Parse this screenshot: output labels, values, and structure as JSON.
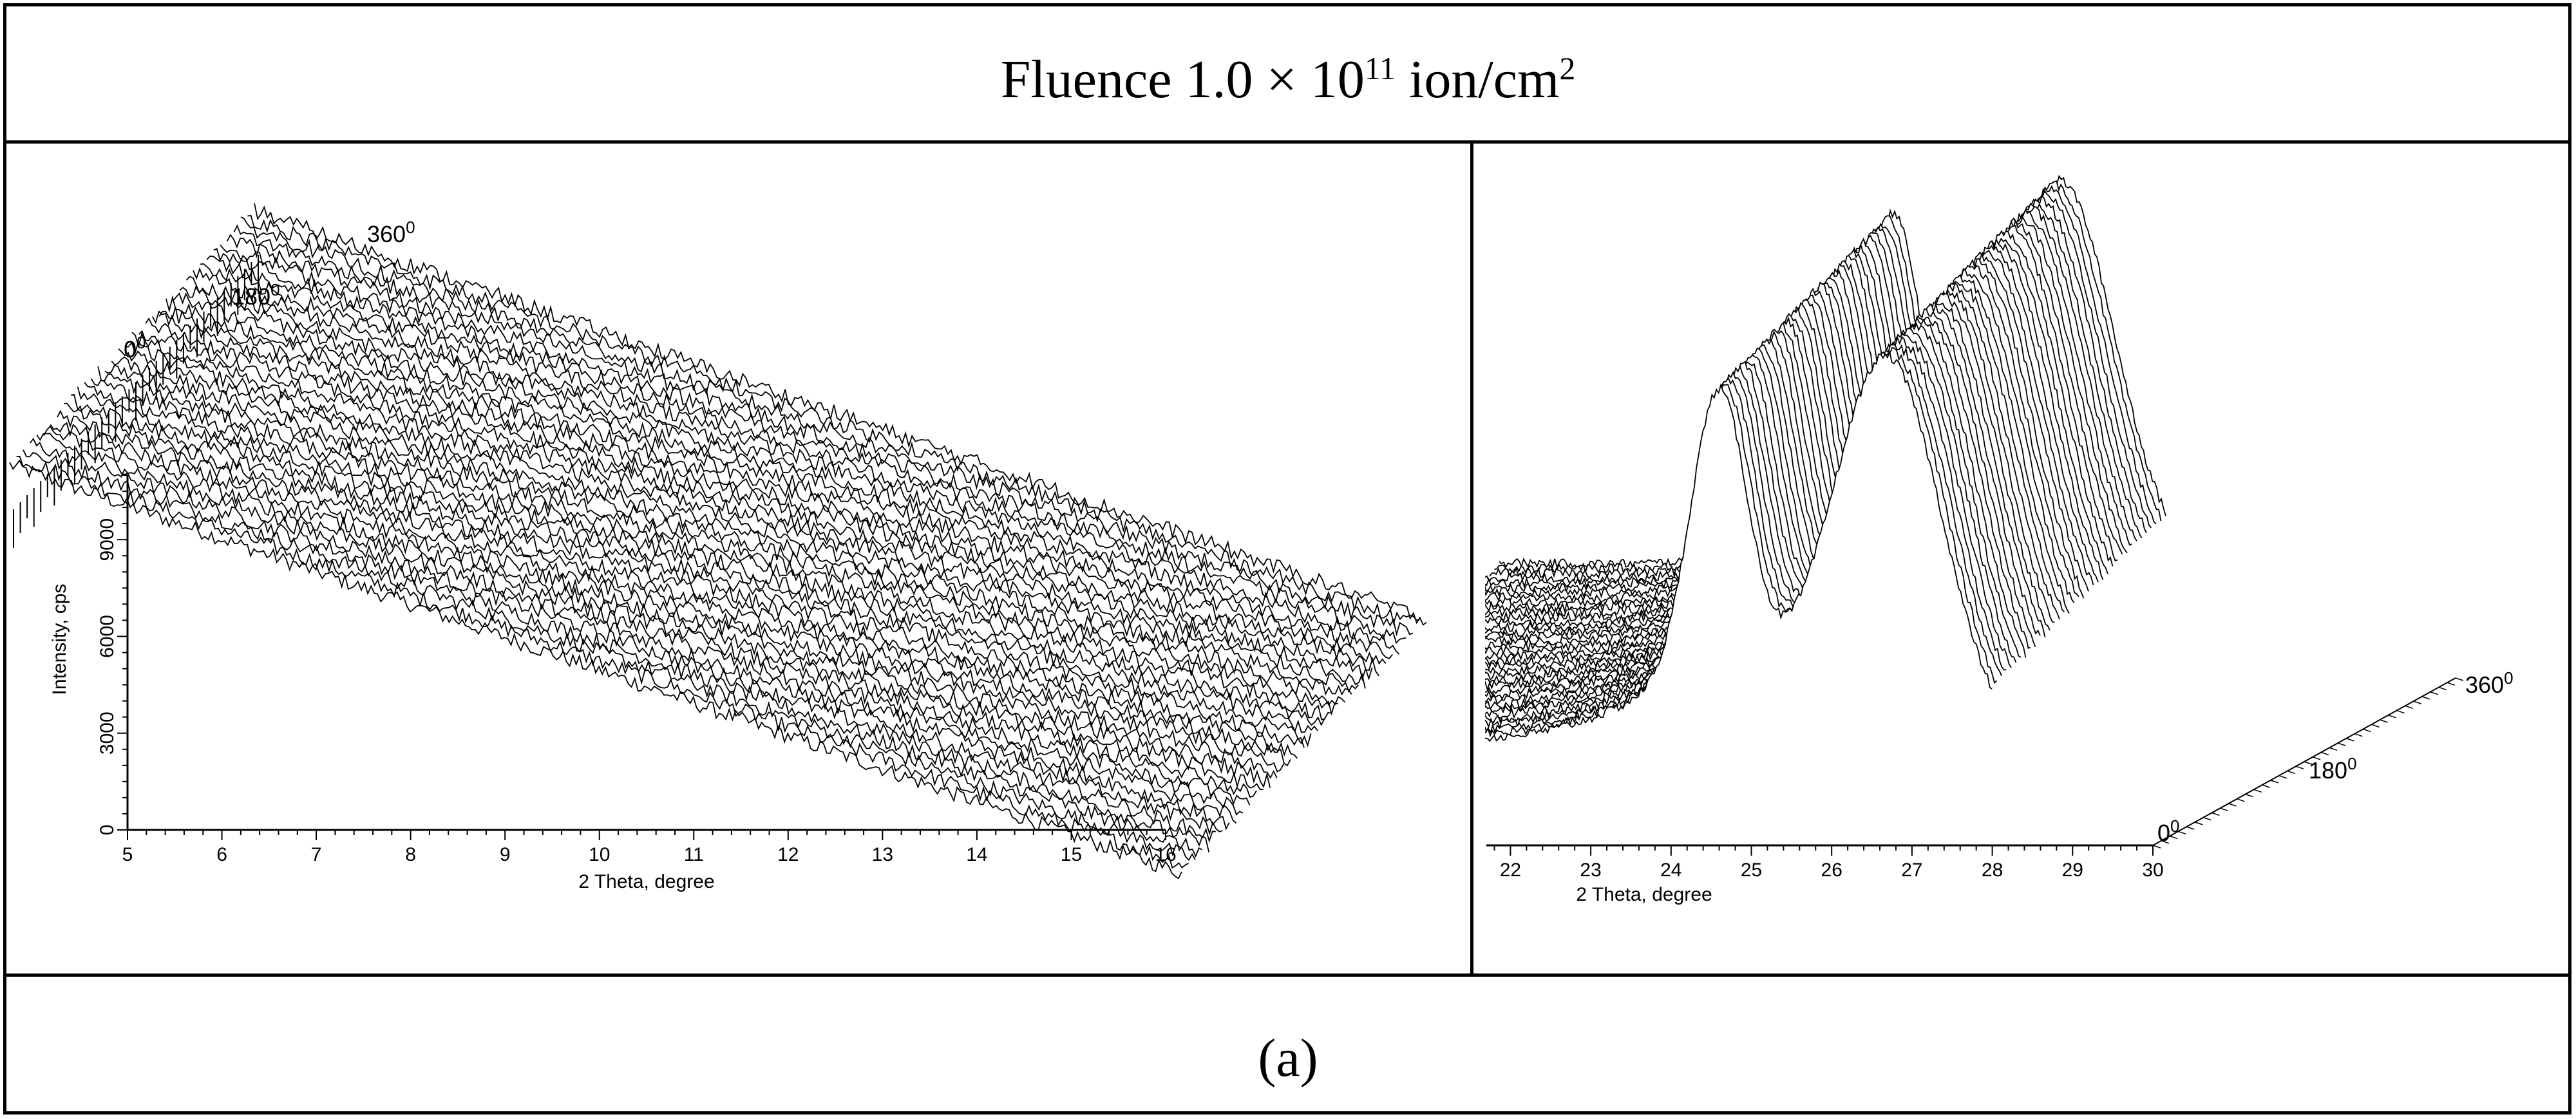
{
  "header": {
    "prefix": "Fluence 1.0 × 10",
    "exponent": "11",
    "suffix": " ion/cm",
    "unit_power": "2"
  },
  "caption": "(a)",
  "chart_data": [
    {
      "type": "line",
      "title": "",
      "xlabel": "2 Theta, degree",
      "ylabel": "Intensity, cps",
      "xlim": [
        5,
        16
      ],
      "ylim": [
        0,
        11000
      ],
      "x_ticks": [
        "5",
        "6",
        "7",
        "8",
        "9",
        "10",
        "11",
        "12",
        "13",
        "14",
        "15",
        "16"
      ],
      "y_ticks": [
        "0",
        "3000",
        "6000",
        "9000"
      ],
      "angle_labels": [
        "0",
        "180",
        "360"
      ],
      "angle_unit": "0",
      "series_count": 37,
      "profile": {
        "start_intensity": 3800,
        "end_intensity": 2200,
        "noise": 350
      }
    },
    {
      "type": "line",
      "title": "",
      "xlabel": "2 Theta, degree",
      "ylabel": "",
      "xlim": [
        21.7,
        30
      ],
      "x_ticks": [
        "22",
        "23",
        "24",
        "25",
        "26",
        "27",
        "28",
        "29",
        "30"
      ],
      "angle_labels": [
        "0",
        "180",
        "360"
      ],
      "angle_unit": "0",
      "series_count": 37,
      "profile": {
        "peak_center": 28.7,
        "peak_height": 2.1,
        "shoulder_center": 26.6
      }
    }
  ]
}
